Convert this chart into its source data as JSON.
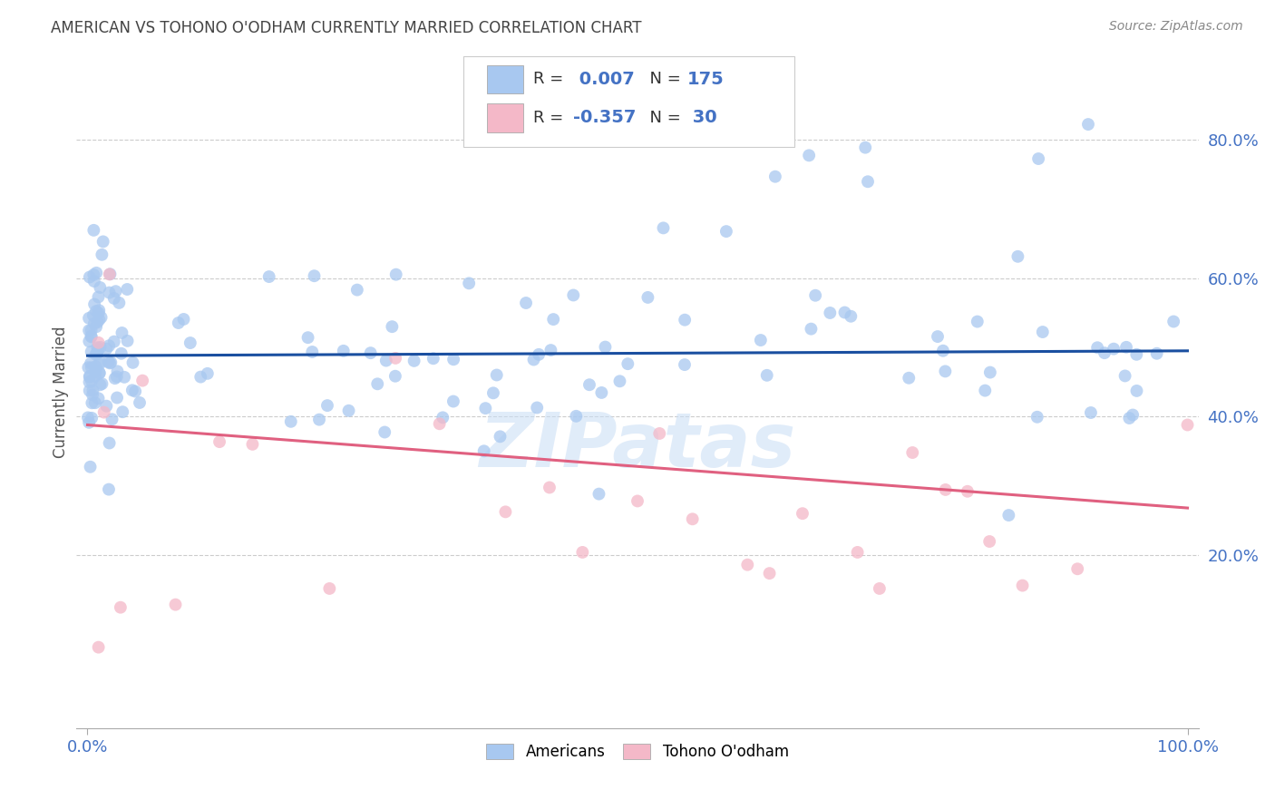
{
  "title": "AMERICAN VS TOHONO O'ODHAM CURRENTLY MARRIED CORRELATION CHART",
  "source": "Source: ZipAtlas.com",
  "ylabel": "Currently Married",
  "watermark": "ZIPatas",
  "color_americans": "#a8c8f0",
  "color_tohono": "#f4b8c8",
  "color_line_americans": "#1a4fa0",
  "color_line_tohono": "#e06080",
  "xlim": [
    -0.01,
    1.01
  ],
  "ylim": [
    -0.05,
    0.92
  ],
  "yticks": [
    0.2,
    0.4,
    0.6,
    0.8
  ],
  "ytick_labels": [
    "20.0%",
    "40.0%",
    "60.0%",
    "80.0%"
  ],
  "xtick_labels": [
    "0.0%",
    "100.0%"
  ],
  "xticks": [
    0.0,
    1.0
  ],
  "americans_line_x": [
    0.0,
    1.0
  ],
  "americans_line_y": [
    0.488,
    0.495
  ],
  "tohono_line_x": [
    0.0,
    1.0
  ],
  "tohono_line_y": [
    0.388,
    0.268
  ]
}
